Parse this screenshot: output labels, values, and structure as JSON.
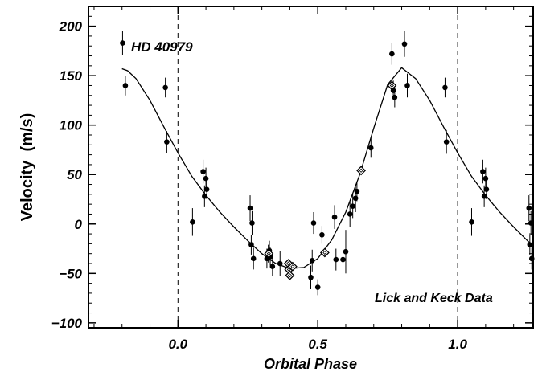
{
  "chart_data": {
    "type": "scatter",
    "title": "",
    "xlabel": "Orbital Phase",
    "ylabel": "Velocity  (m/s)",
    "xlim": [
      -0.32,
      1.27
    ],
    "ylim": [
      -105,
      220
    ],
    "x_ticks": [
      0.0,
      0.5,
      1.0
    ],
    "x_tick_labels": [
      "0.0",
      "0.5",
      "1.0"
    ],
    "y_ticks": [
      -100,
      -50,
      0,
      50,
      100,
      150,
      200
    ],
    "y_tick_labels": [
      "−100",
      "−50",
      "0",
      "50",
      "100",
      "150",
      "200"
    ],
    "vertical_reference_lines": [
      0.0,
      1.0
    ],
    "grid": false,
    "annotations": [
      {
        "text": "HD 40979",
        "position": "top-left"
      },
      {
        "text": "Lick and Keck Data",
        "position": "bottom-right"
      }
    ],
    "series": [
      {
        "marker": "circle",
        "points": [
          {
            "x": -0.198,
            "y": 183,
            "err": 12
          },
          {
            "x": -0.188,
            "y": 140,
            "err": 10
          },
          {
            "x": -0.045,
            "y": 138,
            "err": 10
          },
          {
            "x": -0.04,
            "y": 83,
            "err": 11
          },
          {
            "x": 0.052,
            "y": 2,
            "err": 14
          },
          {
            "x": 0.09,
            "y": 53,
            "err": 12
          },
          {
            "x": 0.095,
            "y": 28,
            "err": 11
          },
          {
            "x": 0.1,
            "y": 46,
            "err": 11
          },
          {
            "x": 0.103,
            "y": 35,
            "err": 10
          },
          {
            "x": 0.258,
            "y": 16,
            "err": 13
          },
          {
            "x": 0.262,
            "y": -21,
            "err": 10
          },
          {
            "x": 0.265,
            "y": 1,
            "err": 12
          },
          {
            "x": 0.27,
            "y": -35,
            "err": 11
          },
          {
            "x": 0.318,
            "y": -35,
            "err": 10
          },
          {
            "x": 0.323,
            "y": -30,
            "err": 9
          },
          {
            "x": 0.327,
            "y": -27,
            "err": 10
          },
          {
            "x": 0.33,
            "y": -33,
            "err": 9
          },
          {
            "x": 0.338,
            "y": -43,
            "err": 10
          },
          {
            "x": 0.365,
            "y": -40,
            "err": 13
          },
          {
            "x": 0.475,
            "y": -54,
            "err": 12
          },
          {
            "x": 0.48,
            "y": -37,
            "err": 11
          },
          {
            "x": 0.485,
            "y": 1,
            "err": 11
          },
          {
            "x": 0.5,
            "y": -64,
            "err": 8
          },
          {
            "x": 0.515,
            "y": -11,
            "err": 9
          },
          {
            "x": 0.56,
            "y": 7,
            "err": 12
          },
          {
            "x": 0.565,
            "y": -36,
            "err": 11
          },
          {
            "x": 0.59,
            "y": -36,
            "err": 10
          },
          {
            "x": 0.6,
            "y": -28,
            "err": 22
          },
          {
            "x": 0.615,
            "y": 10,
            "err": 13
          },
          {
            "x": 0.625,
            "y": 18,
            "err": 12
          },
          {
            "x": 0.635,
            "y": 26,
            "err": 14
          },
          {
            "x": 0.64,
            "y": 33,
            "err": 10
          },
          {
            "x": 0.69,
            "y": 77,
            "err": 10
          },
          {
            "x": 0.765,
            "y": 172,
            "err": 11
          },
          {
            "x": 0.77,
            "y": 135,
            "err": 10
          },
          {
            "x": 0.775,
            "y": 128,
            "err": 10
          },
          {
            "x": 0.81,
            "y": 182,
            "err": 13
          },
          {
            "x": 0.82,
            "y": 140,
            "err": 12
          },
          {
            "x": 0.955,
            "y": 138,
            "err": 10
          },
          {
            "x": 0.96,
            "y": 83,
            "err": 12
          },
          {
            "x": 1.05,
            "y": 2,
            "err": 14
          },
          {
            "x": 1.09,
            "y": 53,
            "err": 12
          },
          {
            "x": 1.095,
            "y": 28,
            "err": 11
          },
          {
            "x": 1.1,
            "y": 46,
            "err": 11
          },
          {
            "x": 1.103,
            "y": 35,
            "err": 10
          },
          {
            "x": 1.255,
            "y": 16,
            "err": 13
          },
          {
            "x": 1.258,
            "y": -21,
            "err": 10
          },
          {
            "x": 1.262,
            "y": 1,
            "err": 12
          },
          {
            "x": 1.265,
            "y": -35,
            "err": 11
          }
        ]
      },
      {
        "marker": "open-diamond",
        "points": [
          {
            "x": 0.325,
            "y": -30
          },
          {
            "x": 0.395,
            "y": -40
          },
          {
            "x": 0.397,
            "y": -46
          },
          {
            "x": 0.4,
            "y": -52
          },
          {
            "x": 0.41,
            "y": -43
          },
          {
            "x": 0.525,
            "y": -29
          },
          {
            "x": 0.655,
            "y": 54
          },
          {
            "x": 0.765,
            "y": 140
          }
        ]
      }
    ],
    "model_curve": {
      "style": "solid",
      "points": [
        [
          -0.2,
          157
        ],
        [
          -0.18,
          155
        ],
        [
          -0.15,
          147
        ],
        [
          -0.1,
          125
        ],
        [
          -0.05,
          98
        ],
        [
          0.0,
          72
        ],
        [
          0.05,
          48
        ],
        [
          0.1,
          29
        ],
        [
          0.15,
          12
        ],
        [
          0.2,
          -3
        ],
        [
          0.25,
          -17
        ],
        [
          0.3,
          -30
        ],
        [
          0.35,
          -40
        ],
        [
          0.4,
          -45
        ],
        [
          0.45,
          -44
        ],
        [
          0.5,
          -35
        ],
        [
          0.55,
          -16
        ],
        [
          0.6,
          12
        ],
        [
          0.65,
          50
        ],
        [
          0.7,
          97
        ],
        [
          0.75,
          141
        ],
        [
          0.8,
          158
        ],
        [
          0.85,
          147
        ],
        [
          0.9,
          125
        ],
        [
          0.95,
          98
        ],
        [
          1.0,
          72
        ],
        [
          1.05,
          48
        ],
        [
          1.1,
          29
        ],
        [
          1.15,
          12
        ],
        [
          1.2,
          -3
        ],
        [
          1.25,
          -17
        ],
        [
          1.27,
          -22
        ]
      ]
    }
  }
}
